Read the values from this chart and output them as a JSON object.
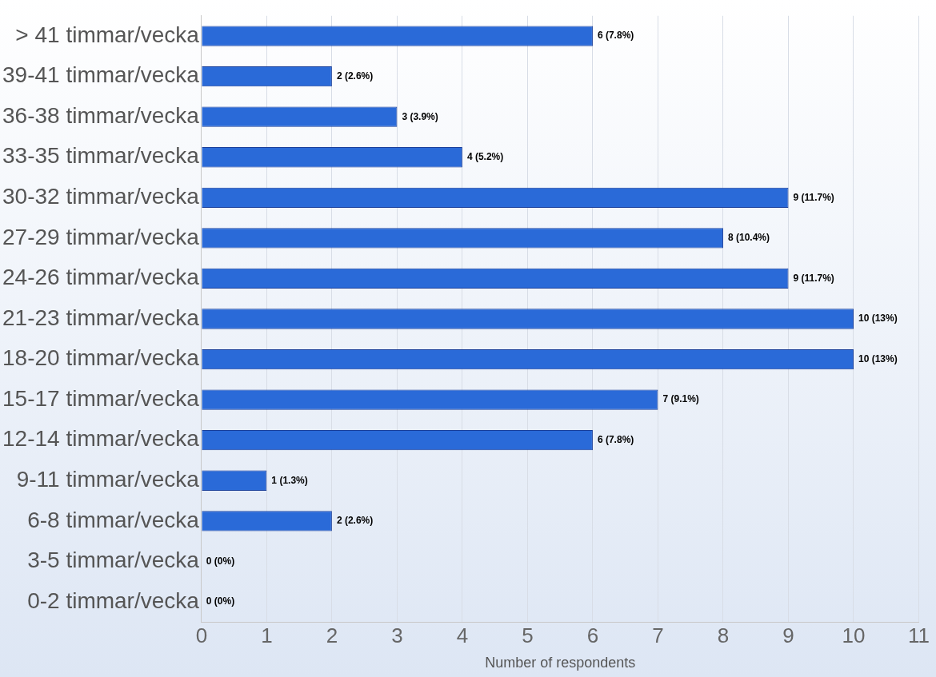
{
  "chart_data": {
    "type": "bar",
    "orientation": "horizontal",
    "xlabel": "Number of respondents",
    "categories": [
      "> 41 timmar/vecka",
      "39-41 timmar/vecka",
      "36-38 timmar/vecka",
      "33-35 timmar/vecka",
      "30-32 timmar/vecka",
      "27-29 timmar/vecka",
      "24-26 timmar/vecka",
      "21-23 timmar/vecka",
      "18-20 timmar/vecka",
      "15-17 timmar/vecka",
      "12-14 timmar/vecka",
      "9-11 timmar/vecka",
      "6-8 timmar/vecka",
      "3-5 timmar/vecka",
      "0-2 timmar/vecka"
    ],
    "values": [
      6,
      2,
      3,
      4,
      9,
      8,
      9,
      10,
      10,
      7,
      6,
      1,
      2,
      0,
      0
    ],
    "value_labels": [
      "6 (7.8%)",
      "2 (2.6%)",
      "3 (3.9%)",
      "4 (5.2%)",
      "9 (11.7%)",
      "8 (10.4%)",
      "9 (11.7%)",
      "10 (13%)",
      "10 (13%)",
      "7 (9.1%)",
      "6 (7.8%)",
      "1 (1.3%)",
      "2 (2.6%)",
      "0 (0%)",
      "0 (0%)"
    ],
    "color": "#2a6ad8",
    "xlim": [
      0,
      11
    ],
    "xticks": [
      0,
      1,
      2,
      3,
      4,
      5,
      6,
      7,
      8,
      9,
      10,
      11
    ],
    "grid": "x",
    "legend": false
  }
}
